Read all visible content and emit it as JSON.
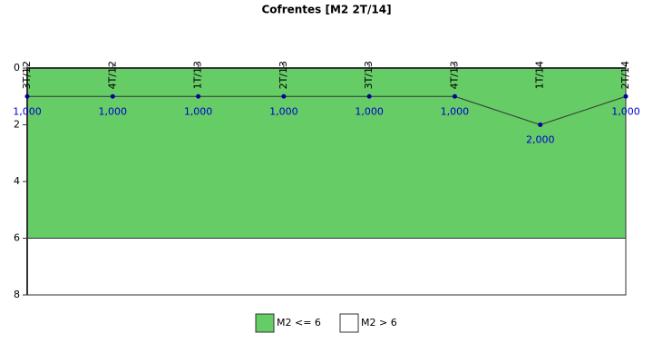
{
  "chart_data": {
    "type": "line",
    "title": "Cofrentes [M2 2T/14]",
    "categories": [
      "3T/12",
      "4T/12",
      "1T/13",
      "2T/13",
      "3T/13",
      "4T/13",
      "1T/14",
      "2T/14"
    ],
    "values": [
      1,
      1,
      1,
      1,
      1,
      1,
      2,
      1
    ],
    "value_labels": [
      "1,000",
      "1,000",
      "1,000",
      "1,000",
      "1,000",
      "1,000",
      "2,000",
      "1,000"
    ],
    "line_color": "#333333",
    "marker_color": "#000099",
    "label_color": "#0000cc",
    "ylim": [
      0,
      8
    ],
    "yticks": [
      0,
      2,
      4,
      6,
      8
    ],
    "y_inverted": true,
    "bands": [
      {
        "name": "M2 <= 6",
        "color": "#66cc66",
        "from": 0,
        "to": 6
      },
      {
        "name": "M2 > 6",
        "color": "#ffffff",
        "from": 6,
        "to": 8
      }
    ]
  }
}
